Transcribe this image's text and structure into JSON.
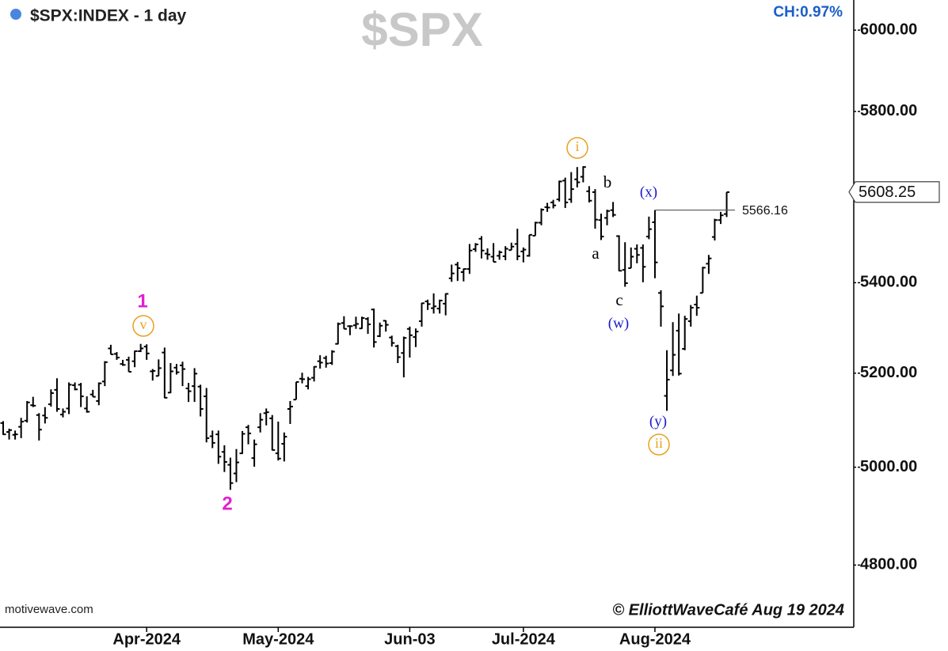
{
  "chart_data": {
    "type": "ohlc",
    "title": "$SPX:INDEX - 1 day",
    "watermark": "$SPX",
    "change_label": "CH:0.97%",
    "source": "motivewave.com",
    "credit": "© ElliottWaveCafé Aug 19 2024",
    "log_scale": true,
    "color": "#000000",
    "ylim": [
      4677,
      6076
    ],
    "yticks": [
      {
        "value": 4800,
        "label": "4800.00"
      },
      {
        "value": 5000,
        "label": "5000.00"
      },
      {
        "value": 5200,
        "label": "5200.00"
      },
      {
        "value": 5400,
        "label": "5400.00"
      },
      {
        "value": 5800,
        "label": "5800.00"
      },
      {
        "value": 6000,
        "label": "6000.00"
      }
    ],
    "last_price": 5608.25,
    "level": 5566.16,
    "annotations": [
      {
        "text": "1",
        "color": "#e020d0"
      },
      {
        "text": "v",
        "color": "#e8a020"
      },
      {
        "text": "2",
        "color": "#e020d0"
      },
      {
        "text": "i",
        "color": "#e8a020"
      },
      {
        "text": "a",
        "color": "#000000"
      },
      {
        "text": "b",
        "color": "#000000"
      },
      {
        "text": "c",
        "color": "#000000"
      },
      {
        "text": "(w)",
        "color": "#1a1acc"
      },
      {
        "text": "(x)",
        "color": "#1a1acc"
      },
      {
        "text": "(y)",
        "color": "#1a1acc"
      },
      {
        "text": "ii",
        "color": "#e8a020"
      }
    ],
    "categories": [
      null,
      null,
      null,
      null,
      null,
      null,
      null,
      null,
      null,
      null,
      null,
      null,
      null,
      null,
      null,
      null,
      null,
      null,
      null,
      null,
      null,
      null,
      null,
      null,
      "Apr-2024",
      null,
      null,
      null,
      null,
      null,
      null,
      null,
      null,
      null,
      null,
      null,
      null,
      null,
      null,
      null,
      null,
      null,
      null,
      null,
      null,
      null,
      "May-2024",
      null,
      null,
      null,
      null,
      null,
      null,
      null,
      null,
      null,
      null,
      null,
      null,
      null,
      null,
      null,
      null,
      null,
      null,
      null,
      null,
      null,
      "Jun-03",
      null,
      null,
      null,
      null,
      null,
      null,
      null,
      null,
      null,
      null,
      null,
      null,
      null,
      null,
      null,
      null,
      null,
      null,
      "Jul-2024",
      null,
      null,
      null,
      null,
      null,
      null,
      null,
      null,
      null,
      null,
      null,
      null,
      null,
      null,
      null,
      null,
      null,
      null,
      null,
      null,
      null,
      "Aug-2024",
      null,
      null,
      null,
      null,
      null,
      null,
      null,
      null,
      null,
      null,
      null,
      null
    ],
    "open": [
      5093,
      5074,
      5068,
      5085,
      5098,
      5131,
      5110,
      5109,
      5133,
      5164,
      5111,
      5124,
      5174,
      5175,
      5124,
      5154,
      5140,
      5182,
      5254,
      5242,
      5220,
      5229,
      5226,
      5248,
      5258,
      5204,
      5194,
      5245,
      5158,
      5212,
      5217,
      5167,
      5172,
      5171,
      5150,
      5065,
      5069,
      5032,
      5005,
      4987,
      5029,
      5084,
      5019,
      5084,
      5114,
      5103,
      5029,
      5049,
      5123,
      5143,
      5188,
      5172,
      5190,
      5226,
      5233,
      5222,
      5264,
      5310,
      5303,
      5305,
      5298,
      5319,
      5340,
      5281,
      5315,
      5278,
      5259,
      5244,
      5297,
      5279,
      5314,
      5358,
      5343,
      5342,
      5353,
      5410,
      5441,
      5424,
      5431,
      5476,
      5500,
      5466,
      5459,
      5461,
      5460,
      5474,
      5488,
      5471,
      5461,
      5507,
      5537,
      5573,
      5584,
      5591,
      5635,
      5591,
      5638,
      5644,
      5610,
      5608,
      5543,
      5548,
      5566,
      5506,
      5429,
      5433,
      5477,
      5479,
      5505,
      5538,
      5377,
      5151,
      5206,
      5293,
      5253,
      5314,
      5351,
      5377,
      5443,
      5504,
      5543,
      5557
    ],
    "high": [
      5097,
      5081,
      5077,
      5104,
      5140,
      5149,
      5114,
      5127,
      5165,
      5189,
      5124,
      5180,
      5180,
      5179,
      5150,
      5164,
      5180,
      5226,
      5262,
      5246,
      5229,
      5236,
      5249,
      5264,
      5263,
      5209,
      5230,
      5256,
      5222,
      5220,
      5225,
      5179,
      5211,
      5175,
      5168,
      5077,
      5077,
      5046,
      5020,
      5038,
      5076,
      5089,
      5058,
      5114,
      5124,
      5110,
      5096,
      5073,
      5140,
      5181,
      5201,
      5192,
      5215,
      5239,
      5238,
      5250,
      5311,
      5325,
      5305,
      5324,
      5324,
      5323,
      5342,
      5311,
      5316,
      5282,
      5262,
      5280,
      5302,
      5298,
      5355,
      5362,
      5376,
      5362,
      5376,
      5441,
      5447,
      5432,
      5488,
      5490,
      5506,
      5478,
      5490,
      5473,
      5483,
      5491,
      5523,
      5480,
      5509,
      5539,
      5570,
      5583,
      5590,
      5635,
      5642,
      5655,
      5667,
      5669,
      5622,
      5615,
      5558,
      5567,
      5585,
      5508,
      5492,
      5480,
      5487,
      5487,
      5551,
      5566,
      5383,
      5250,
      5312,
      5331,
      5326,
      5350,
      5371,
      5436,
      5463,
      5546,
      5562,
      5608
    ],
    "low": [
      5068,
      5058,
      5058,
      5061,
      5094,
      5127,
      5056,
      5092,
      5128,
      5117,
      5105,
      5112,
      5163,
      5127,
      5115,
      5149,
      5131,
      5172,
      5241,
      5229,
      5216,
      5203,
      5213,
      5246,
      5229,
      5184,
      5194,
      5146,
      5157,
      5197,
      5172,
      5138,
      5138,
      5107,
      5052,
      5040,
      5007,
      4990,
      4953,
      4969,
      5028,
      5048,
      5001,
      5073,
      5088,
      5035,
      5014,
      5012,
      5091,
      5143,
      5178,
      5165,
      5182,
      5210,
      5212,
      5218,
      5263,
      5297,
      5283,
      5297,
      5297,
      5286,
      5256,
      5279,
      5291,
      5258,
      5222,
      5191,
      5234,
      5257,
      5302,
      5339,
      5331,
      5331,
      5327,
      5402,
      5404,
      5403,
      5420,
      5470,
      5455,
      5452,
      5447,
      5452,
      5451,
      5474,
      5451,
      5446,
      5459,
      5507,
      5531,
      5562,
      5570,
      5586,
      5571,
      5583,
      5619,
      5631,
      5584,
      5523,
      5497,
      5531,
      5550,
      5426,
      5391,
      5433,
      5444,
      5401,
      5499,
      5410,
      5302,
      5119,
      5194,
      5195,
      5250,
      5302,
      5326,
      5377,
      5420,
      5496,
      5534,
      5550
    ],
    "close": [
      5069,
      5078,
      5069,
      5096,
      5137,
      5130,
      5079,
      5104,
      5157,
      5123,
      5117,
      5175,
      5165,
      5150,
      5117,
      5149,
      5178,
      5224,
      5241,
      5234,
      5218,
      5203,
      5248,
      5254,
      5243,
      5205,
      5211,
      5147,
      5204,
      5202,
      5209,
      5161,
      5199,
      5123,
      5061,
      5051,
      5022,
      5011,
      4967,
      5010,
      5070,
      5071,
      5048,
      5100,
      5116,
      5036,
      5018,
      5064,
      5128,
      5181,
      5187,
      5187,
      5214,
      5223,
      5221,
      5247,
      5308,
      5297,
      5303,
      5308,
      5321,
      5307,
      5268,
      5304,
      5306,
      5266,
      5235,
      5277,
      5283,
      5291,
      5354,
      5352,
      5347,
      5360,
      5375,
      5421,
      5433,
      5431,
      5473,
      5487,
      5473,
      5464,
      5447,
      5469,
      5477,
      5482,
      5460,
      5475,
      5509,
      5537,
      5567,
      5572,
      5577,
      5633,
      5584,
      5615,
      5631,
      5667,
      5588,
      5544,
      5505,
      5564,
      5555,
      5427,
      5399,
      5459,
      5463,
      5436,
      5522,
      5446,
      5347,
      5186,
      5240,
      5199,
      5319,
      5344,
      5344,
      5434,
      5455,
      5543,
      5554,
      5608
    ]
  }
}
